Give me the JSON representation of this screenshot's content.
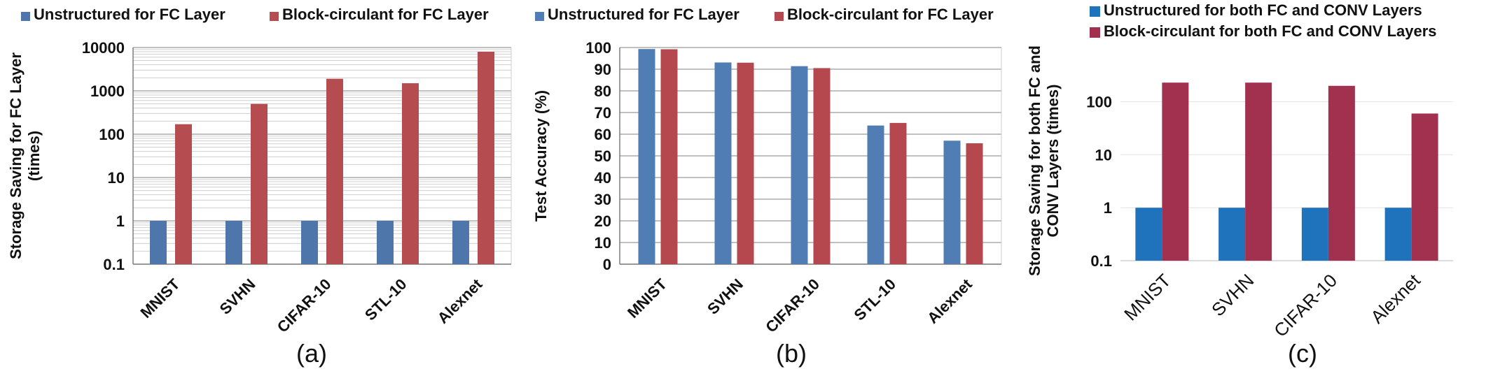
{
  "colors": {
    "panel_a_unstructured": "#4f76aa",
    "panel_a_block": "#b54c4f",
    "panel_b_unstructured": "#4f7db4",
    "panel_b_block": "#b5474f",
    "panel_c_unstructured": "#1f73bd",
    "panel_c_block": "#a2304f",
    "grid": "#c8c8c8"
  },
  "chart_data": [
    {
      "type": "bar",
      "panel_label": "(a)",
      "ylabel_lines": [
        "Storage Saving for FC Layer",
        "(times)"
      ],
      "yscale": "log",
      "ylim": [
        0.1,
        10000
      ],
      "yticks": [
        "0.1",
        "1",
        "10",
        "100",
        "1000",
        "10000"
      ],
      "grid": true,
      "legend_position": "top",
      "categories": [
        "MNIST",
        "SVHN",
        "CIFAR-10",
        "STL-10",
        "Alexnet"
      ],
      "series": [
        {
          "name": "Unstructured for FC Layer",
          "values": [
            1,
            1,
            1,
            1,
            1
          ]
        },
        {
          "name": "Block-circulant for FC Layer",
          "values": [
            170,
            500,
            1900,
            1500,
            8000
          ]
        }
      ]
    },
    {
      "type": "bar",
      "panel_label": "(b)",
      "ylabel_lines": [
        "Test Accuracy (%)"
      ],
      "yscale": "linear",
      "ylim": [
        0,
        100
      ],
      "yticks": [
        "0",
        "10",
        "20",
        "30",
        "40",
        "50",
        "60",
        "70",
        "80",
        "90",
        "100"
      ],
      "grid": true,
      "legend_position": "top",
      "categories": [
        "MNIST",
        "SVHN",
        "CIFAR-10",
        "STL-10",
        "Alexnet"
      ],
      "series": [
        {
          "name": "Unstructured for FC Layer",
          "values": [
            99.3,
            93.1,
            91.4,
            64.0,
            57.0
          ]
        },
        {
          "name": "Block-circulant for FC Layer",
          "values": [
            99.2,
            93.0,
            90.5,
            65.2,
            55.8
          ]
        }
      ]
    },
    {
      "type": "bar",
      "panel_label": "(c)",
      "ylabel_lines": [
        "Storage Saving for both FC and",
        "CONV Layers (times)"
      ],
      "yscale": "log",
      "ylim": [
        0.1,
        400
      ],
      "yticks": [
        "0.1",
        "1",
        "10",
        "100"
      ],
      "grid": true,
      "legend_position": "top",
      "categories": [
        "MNIST",
        "SVHN",
        "CIFAR-10",
        "Alexnet"
      ],
      "series": [
        {
          "name": "Unstructured for both FC and CONV Layers",
          "values": [
            1,
            1,
            1,
            1
          ]
        },
        {
          "name": "Block-circulant for both FC and CONV Layers",
          "values": [
            230,
            230,
            200,
            60
          ]
        }
      ]
    }
  ]
}
